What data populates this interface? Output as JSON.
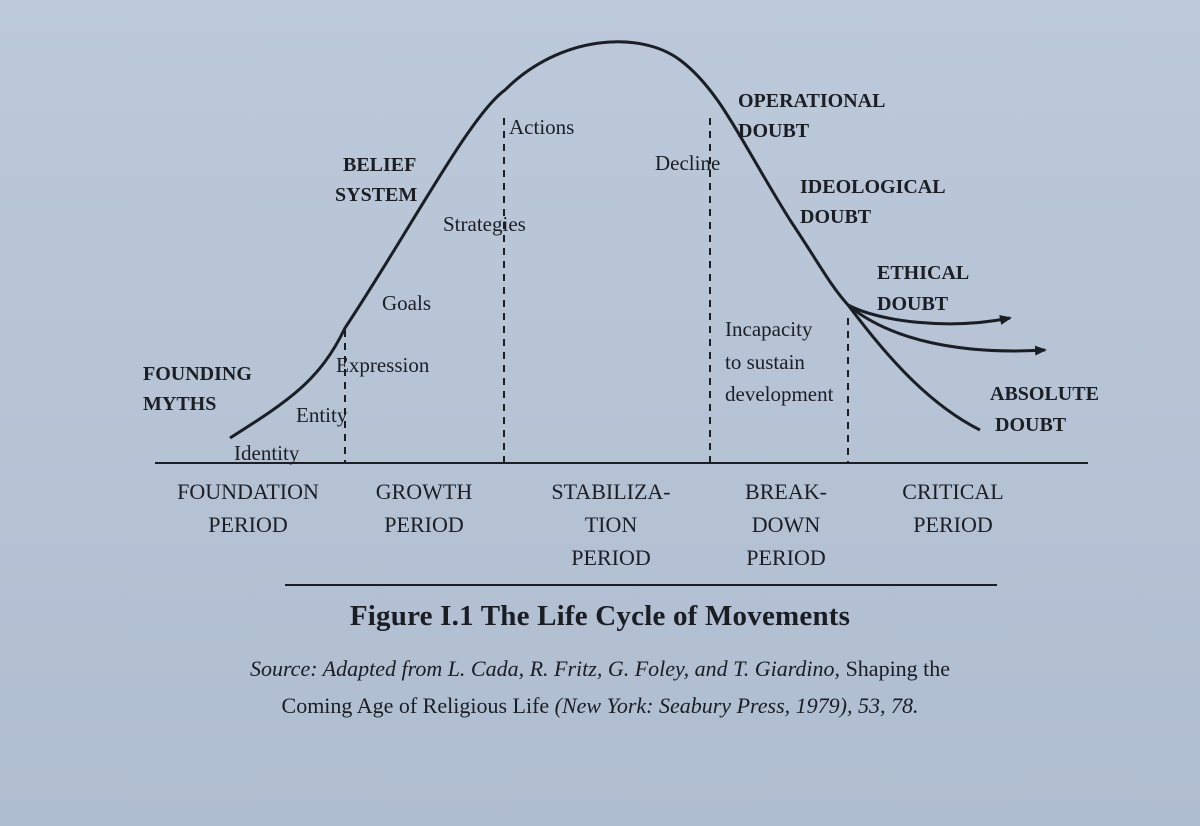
{
  "curve_labels": {
    "identity": "Identity",
    "entity": "Entity",
    "expression": "Expression",
    "goals": "Goals",
    "strategies": "Strategies",
    "actions": "Actions",
    "decline": "Decline",
    "incapacity_1": "Incapacity",
    "incapacity_2": "to sustain",
    "incapacity_3": "development"
  },
  "phase_labels": {
    "founding_1": "FOUNDING",
    "founding_2": "MYTHS",
    "belief_1": "BELIEF",
    "belief_2": "SYSTEM",
    "operational_1": "OPERATIONAL",
    "operational_2": "DOUBT",
    "ideological_1": "IDEOLOGICAL",
    "ideological_2": "DOUBT",
    "ethical_1": "ETHICAL",
    "ethical_2": "DOUBT",
    "absolute_1": "ABSOLUTE",
    "absolute_2": "DOUBT"
  },
  "periods": {
    "foundation_1": "FOUNDATION",
    "foundation_2": "PERIOD",
    "growth_1": "GROWTH",
    "growth_2": "PERIOD",
    "stabilization_1": "STABILIZA-",
    "stabilization_2": "TION",
    "stabilization_3": "PERIOD",
    "breakdown_1": "BREAK-",
    "breakdown_2": "DOWN",
    "breakdown_3": "PERIOD",
    "critical_1": "CRITICAL",
    "critical_2": "PERIOD"
  },
  "caption": {
    "title": "Figure I.1 The Life Cycle of Movements",
    "source_lead": "Source: Adapted from L. Cada, R. Fritz, G. Foley, and T. Giardino,",
    "source_book_1": "Shaping the",
    "source_book_2": "Coming Age of Religious Life",
    "source_pub": "(New York: Seabury Press, 1979), 53, 78."
  },
  "colors": {
    "paper": "#b9c6d8",
    "ink": "#1b1e25"
  }
}
